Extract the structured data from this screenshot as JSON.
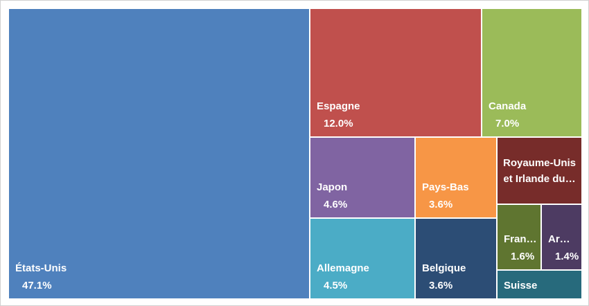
{
  "chart_data": {
    "type": "treemap",
    "categories": [
      "États-Unis",
      "Espagne",
      "Canada",
      "Japon",
      "Pays-Bas",
      "Royaume-Unis et Irlande du…",
      "Allemagne",
      "Belgique",
      "Fran…",
      "Ar…",
      "Suisse"
    ],
    "values": [
      47.1,
      12.0,
      7.0,
      4.6,
      3.6,
      3.0,
      4.5,
      3.6,
      1.6,
      1.4,
      1.3
    ],
    "value_labels": [
      "47.1%",
      "12.0%",
      "7.0%",
      "4.6%",
      "3.6%",
      null,
      "4.5%",
      "3.6%",
      "1.6%",
      "1.4%",
      null
    ],
    "colors": [
      "#4f81bd",
      "#c0504d",
      "#9bbb59",
      "#8064a2",
      "#f79646",
      "#772c2a",
      "#4bacc6",
      "#2c4d75",
      "#5f7530",
      "#4d3b62",
      "#276a7c"
    ]
  }
}
